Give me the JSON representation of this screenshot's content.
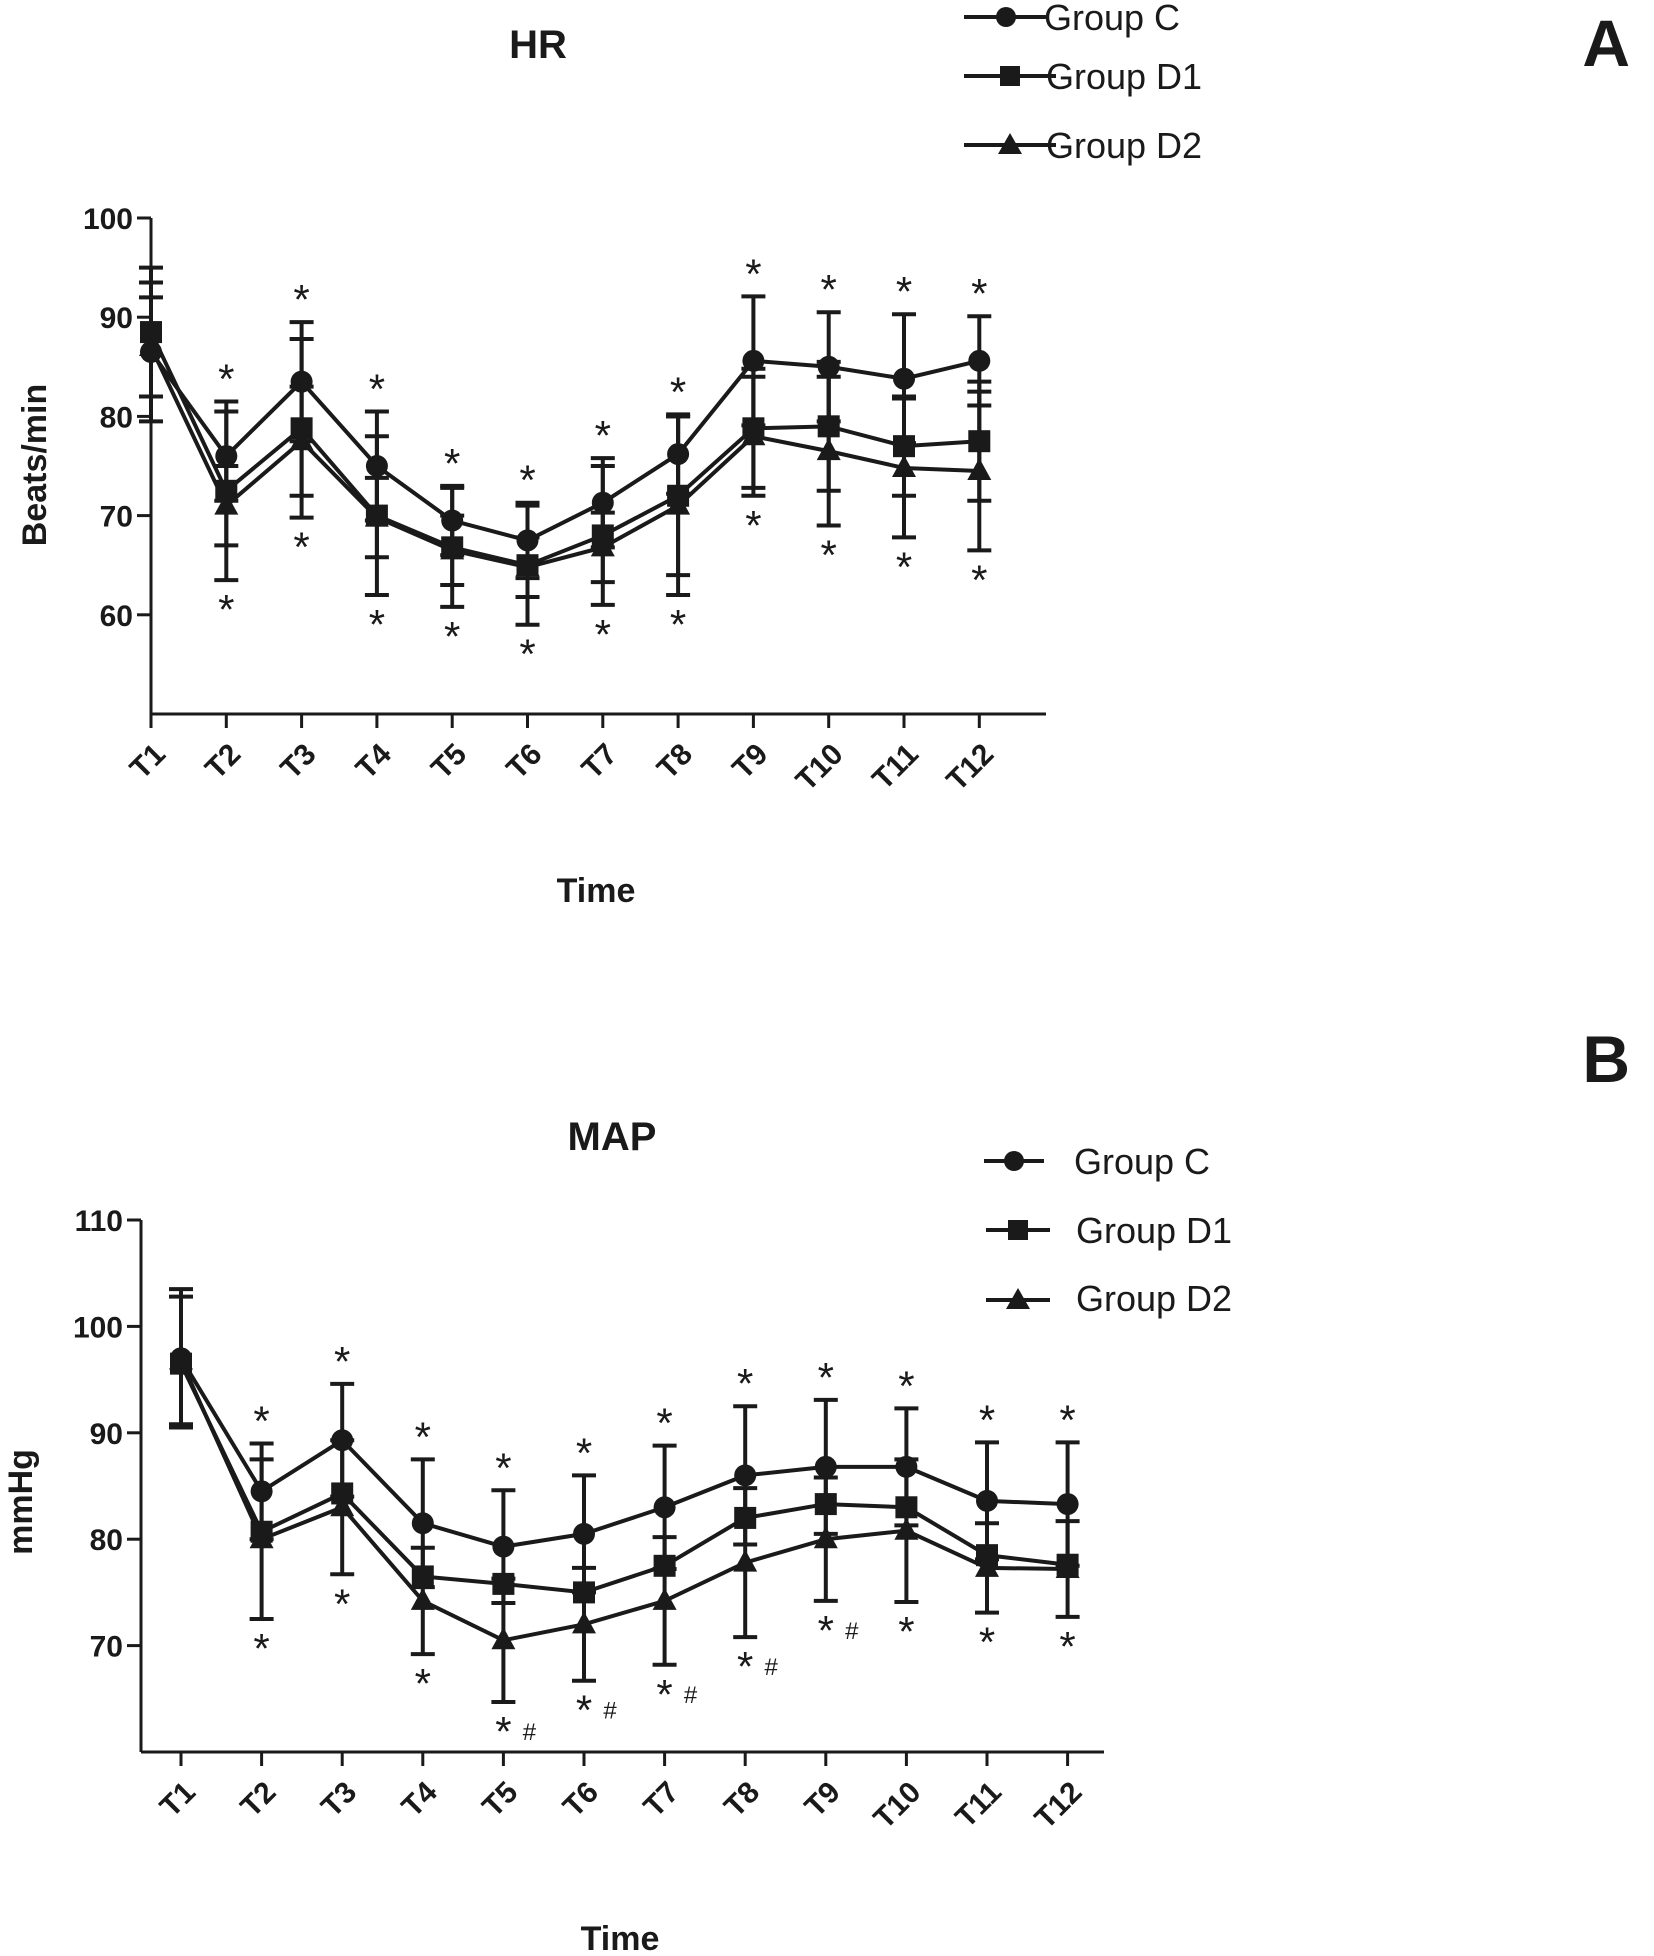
{
  "chart_data": [
    {
      "id": "A",
      "panel_label": "A",
      "type": "line",
      "title": "HR",
      "xlabel": "Time",
      "ylabel": "Beats/min",
      "ylim": [
        50,
        100
      ],
      "yticks": [
        60,
        70,
        80,
        90,
        100
      ],
      "categories": [
        "T1",
        "T2",
        "T3",
        "T4",
        "T5",
        "T6",
        "T7",
        "T8",
        "T9",
        "T10",
        "T11",
        "T12"
      ],
      "legend": [
        "Group C",
        "Group D1",
        "Group D2"
      ],
      "series": [
        {
          "name": "Group C",
          "marker": "circle",
          "values": [
            86.5,
            76.0,
            83.5,
            75.0,
            69.5,
            67.5,
            71.3,
            76.2,
            85.6,
            85.0,
            83.8,
            85.6
          ],
          "sd": [
            7.0,
            4.5,
            6.0,
            5.5,
            3.5,
            3.8,
            4.5,
            4.0,
            6.5,
            5.5,
            6.5,
            4.5
          ]
        },
        {
          "name": "Group D1",
          "marker": "square",
          "values": [
            88.5,
            72.5,
            78.8,
            70.0,
            66.8,
            65.0,
            68.0,
            72.0,
            78.8,
            79.0,
            77.0,
            77.5
          ],
          "sd": [
            6.5,
            9.0,
            9.0,
            8.0,
            6.0,
            6.0,
            7.0,
            8.0,
            6.0,
            6.5,
            5.0,
            6.0
          ]
        },
        {
          "name": "Group D2",
          "marker": "triangle",
          "values": [
            87.0,
            71.0,
            77.5,
            69.8,
            66.5,
            64.8,
            66.8,
            71.0,
            78.0,
            76.5,
            74.8,
            74.5
          ],
          "sd": [
            5.0,
            4.0,
            5.5,
            4.0,
            3.5,
            3.0,
            3.5,
            9.0,
            6.0,
            7.5,
            7.0,
            8.0
          ]
        }
      ],
      "annotations": [
        {
          "category": "T2",
          "position": "above",
          "text": "*"
        },
        {
          "category": "T2",
          "position": "below",
          "text": "*"
        },
        {
          "category": "T3",
          "position": "above",
          "text": "*"
        },
        {
          "category": "T3",
          "position": "below",
          "text": "*"
        },
        {
          "category": "T4",
          "position": "above",
          "text": "*"
        },
        {
          "category": "T4",
          "position": "below",
          "text": "*"
        },
        {
          "category": "T5",
          "position": "above",
          "text": "*"
        },
        {
          "category": "T5",
          "position": "below",
          "text": "*"
        },
        {
          "category": "T6",
          "position": "above",
          "text": "*"
        },
        {
          "category": "T6",
          "position": "below",
          "text": "*"
        },
        {
          "category": "T7",
          "position": "above",
          "text": "*"
        },
        {
          "category": "T7",
          "position": "below",
          "text": "*"
        },
        {
          "category": "T8",
          "position": "above",
          "text": "*"
        },
        {
          "category": "T8",
          "position": "below",
          "text": "*"
        },
        {
          "category": "T9",
          "position": "above",
          "text": "*"
        },
        {
          "category": "T9",
          "position": "below",
          "text": "*"
        },
        {
          "category": "T10",
          "position": "above",
          "text": "*"
        },
        {
          "category": "T10",
          "position": "below",
          "text": "*"
        },
        {
          "category": "T11",
          "position": "above",
          "text": "*"
        },
        {
          "category": "T11",
          "position": "below",
          "text": "*"
        },
        {
          "category": "T12",
          "position": "above",
          "text": "*"
        },
        {
          "category": "T12",
          "position": "below",
          "text": "*"
        }
      ]
    },
    {
      "id": "B",
      "panel_label": "B",
      "type": "line",
      "title": "MAP",
      "xlabel": "Time",
      "ylabel": "mmHg",
      "ylim": [
        60,
        110
      ],
      "yticks": [
        70,
        80,
        90,
        100,
        110
      ],
      "categories": [
        "T1",
        "T2",
        "T3",
        "T4",
        "T5",
        "T6",
        "T7",
        "T8",
        "T9",
        "T10",
        "T11",
        "T12"
      ],
      "legend": [
        "Group C",
        "Group D1",
        "Group D2"
      ],
      "series": [
        {
          "name": "Group C",
          "marker": "circle",
          "values": [
            97.0,
            84.5,
            89.3,
            81.5,
            79.3,
            80.5,
            83.0,
            86.0,
            86.8,
            86.8,
            83.6,
            83.3
          ],
          "sd": [
            6.5,
            4.5,
            5.3,
            6.0,
            5.3,
            5.5,
            5.8,
            6.5,
            6.3,
            5.5,
            5.5,
            5.8
          ]
        },
        {
          "name": "Group D1",
          "marker": "square",
          "values": [
            96.5,
            80.7,
            84.3,
            76.5,
            75.8,
            75.0,
            77.5,
            82.0,
            83.3,
            83.0,
            78.5,
            77.6
          ]
        },
        {
          "name": "Group D2",
          "marker": "triangle",
          "values": [
            96.8,
            80.0,
            83.0,
            74.2,
            70.5,
            72.0,
            74.2,
            77.8,
            80.0,
            80.8,
            77.3,
            77.2
          ],
          "sd": [
            6.0,
            7.5,
            6.3,
            5.0,
            5.8,
            5.3,
            6.0,
            7.0,
            5.8,
            6.7,
            4.2,
            4.5
          ]
        }
      ],
      "annotations": [
        {
          "category": "T2",
          "position": "above",
          "text": "*"
        },
        {
          "category": "T2",
          "position": "below",
          "text": "*"
        },
        {
          "category": "T3",
          "position": "above",
          "text": "*"
        },
        {
          "category": "T3",
          "position": "below",
          "text": "*"
        },
        {
          "category": "T4",
          "position": "above",
          "text": "*"
        },
        {
          "category": "T4",
          "position": "below",
          "text": "*"
        },
        {
          "category": "T5",
          "position": "above",
          "text": "*"
        },
        {
          "category": "T5",
          "position": "below",
          "text": "*",
          "hash": "#"
        },
        {
          "category": "T6",
          "position": "above",
          "text": "*"
        },
        {
          "category": "T6",
          "position": "below",
          "text": "*",
          "hash": "#"
        },
        {
          "category": "T7",
          "position": "above",
          "text": "*"
        },
        {
          "category": "T7",
          "position": "below",
          "text": "*",
          "hash": "#"
        },
        {
          "category": "T8",
          "position": "above",
          "text": "*"
        },
        {
          "category": "T8",
          "position": "below",
          "text": "*",
          "hash": "#"
        },
        {
          "category": "T9",
          "position": "above",
          "text": "*"
        },
        {
          "category": "T9",
          "position": "below",
          "text": "*",
          "hash": "#"
        },
        {
          "category": "T10",
          "position": "above",
          "text": "*"
        },
        {
          "category": "T10",
          "position": "below",
          "text": "*"
        },
        {
          "category": "T11",
          "position": "above",
          "text": "*"
        },
        {
          "category": "T11",
          "position": "below",
          "text": "*"
        },
        {
          "category": "T12",
          "position": "above",
          "text": "*"
        },
        {
          "category": "T12",
          "position": "below",
          "text": "*"
        }
      ]
    }
  ]
}
